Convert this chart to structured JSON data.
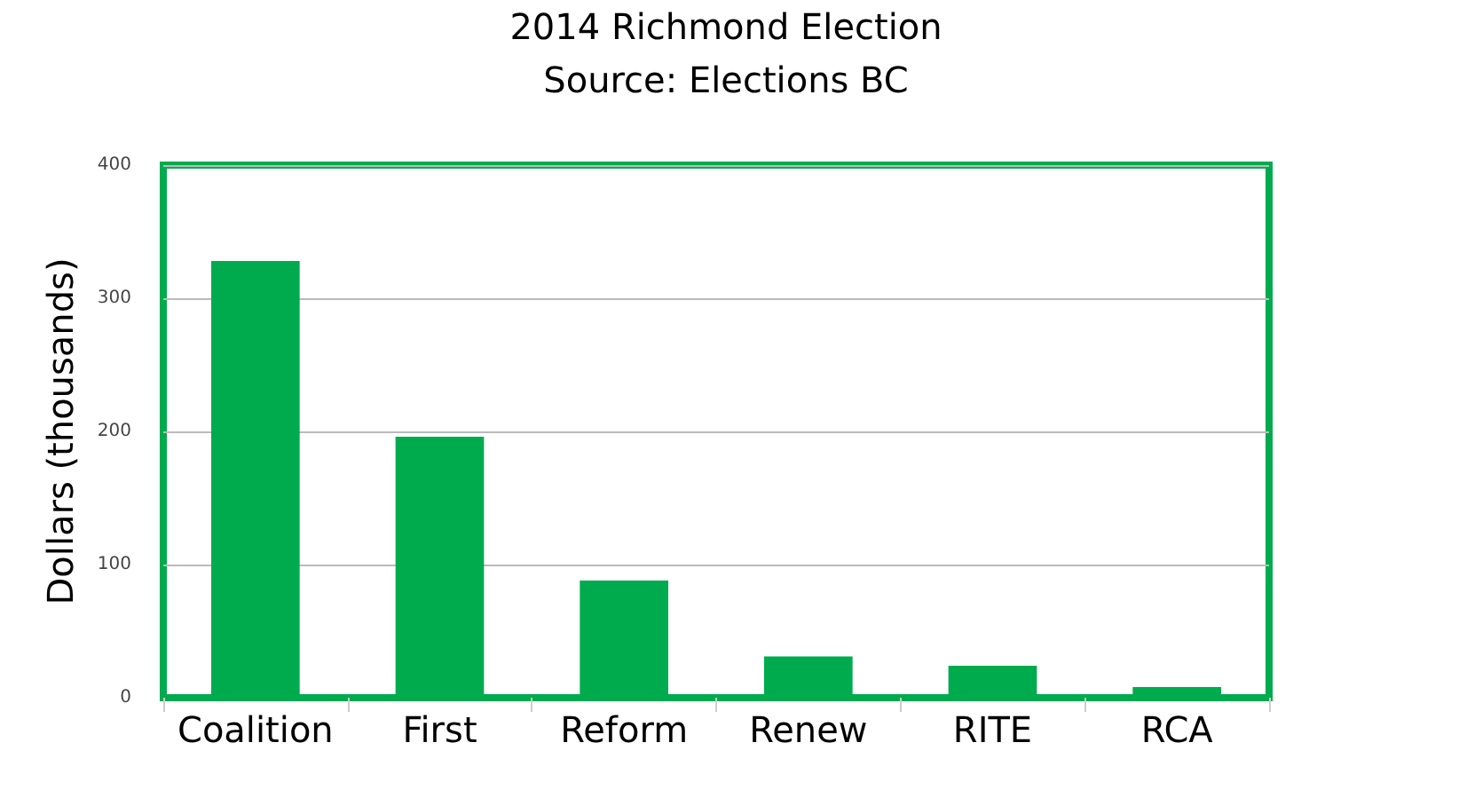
{
  "chart_data": {
    "type": "bar",
    "title": "2014 Richmond Election",
    "subtitle": "Source: Elections BC",
    "ylabel": "Dollars (thousands)",
    "categories": [
      "Coalition",
      "First",
      "Reform",
      "Renew",
      "RITE",
      "RCA"
    ],
    "values": [
      328,
      196,
      88,
      31,
      24,
      8
    ],
    "color": "#00ab4e",
    "ylim": [
      0,
      400
    ],
    "yticks": [
      0,
      100,
      200,
      300,
      400
    ],
    "grid": "y",
    "legend": false
  }
}
